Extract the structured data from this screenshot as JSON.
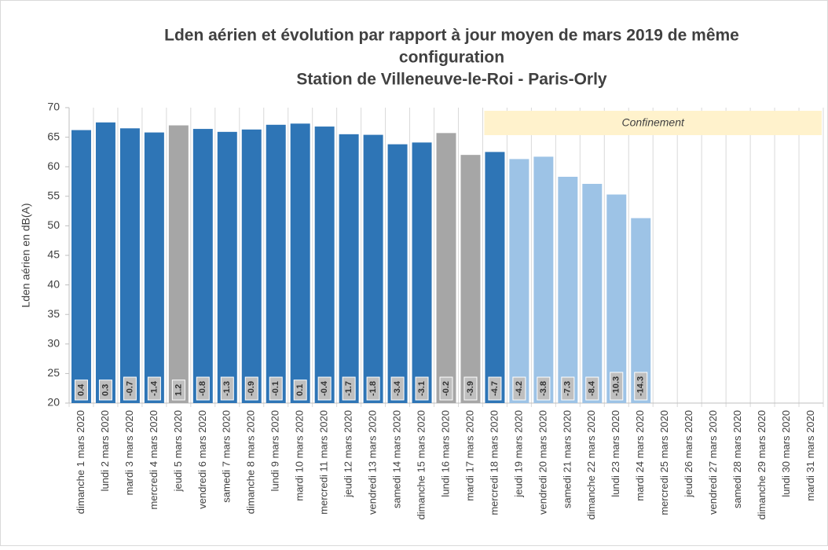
{
  "chart_data": {
    "type": "bar",
    "title": [
      "Lden aérien et évolution par rapport à jour moyen de mars 2019 de même",
      "configuration",
      "Station de Villeneuve-le-Roi - Paris-Orly"
    ],
    "ylabel": "Lden aérien en dB(A)",
    "categories": [
      "dimanche 1 mars 2020",
      "lundi 2 mars 2020",
      "mardi 3 mars 2020",
      "mercredi 4 mars 2020",
      "jeudi 5 mars 2020",
      "vendredi 6 mars 2020",
      "samedi 7 mars 2020",
      "dimanche 8 mars 2020",
      "lundi 9 mars 2020",
      "mardi 10 mars 2020",
      "mercredi 11 mars 2020",
      "jeudi 12 mars 2020",
      "vendredi 13 mars 2020",
      "samedi 14 mars 2020",
      "dimanche 15 mars 2020",
      "lundi 16 mars 2020",
      "mardi 17 mars 2020",
      "mercredi 18 mars 2020",
      "jeudi 19 mars 2020",
      "vendredi 20 mars 2020",
      "samedi 21 mars 2020",
      "dimanche 22 mars 2020",
      "lundi 23 mars 2020",
      "mardi 24 mars 2020",
      "mercredi 25 mars 2020",
      "jeudi 26 mars 2020",
      "vendredi 27 mars 2020",
      "samedi 28 mars 2020",
      "dimanche 29 mars 2020",
      "lundi 30 mars 2020",
      "mardi 31 mars 2020"
    ],
    "values": [
      66.2,
      67.5,
      66.5,
      65.8,
      67.0,
      66.4,
      65.9,
      66.3,
      67.1,
      67.3,
      66.8,
      65.5,
      65.4,
      63.8,
      64.1,
      65.7,
      62.0,
      62.5,
      61.3,
      61.7,
      58.3,
      57.1,
      55.3,
      51.3,
      null,
      null,
      null,
      null,
      null,
      null,
      null
    ],
    "colors": [
      "#2e75b6",
      "#2e75b6",
      "#2e75b6",
      "#2e75b6",
      "#a6a6a6",
      "#2e75b6",
      "#2e75b6",
      "#2e75b6",
      "#2e75b6",
      "#2e75b6",
      "#2e75b6",
      "#2e75b6",
      "#2e75b6",
      "#2e75b6",
      "#2e75b6",
      "#a6a6a6",
      "#a6a6a6",
      "#2e75b6",
      "#9dc3e6",
      "#9dc3e6",
      "#9dc3e6",
      "#9dc3e6",
      "#9dc3e6",
      "#9dc3e6",
      null,
      null,
      null,
      null,
      null,
      null,
      null
    ],
    "evolution": [
      0.4,
      0.3,
      -0.7,
      -1.4,
      1.2,
      -0.8,
      -1.3,
      -0.9,
      -0.1,
      0.1,
      -0.4,
      -1.7,
      -1.8,
      -3.4,
      -3.1,
      -0.2,
      -3.9,
      -4.7,
      -4.2,
      -3.8,
      -7.3,
      -8.4,
      -10.3,
      -14.3
    ],
    "annotation": {
      "text": "Confinement",
      "start": "mercredi 18 mars 2020"
    },
    "ylim": [
      20,
      70
    ],
    "yticks": [
      20,
      25,
      30,
      35,
      40,
      45,
      50,
      55,
      60,
      65,
      70
    ]
  }
}
